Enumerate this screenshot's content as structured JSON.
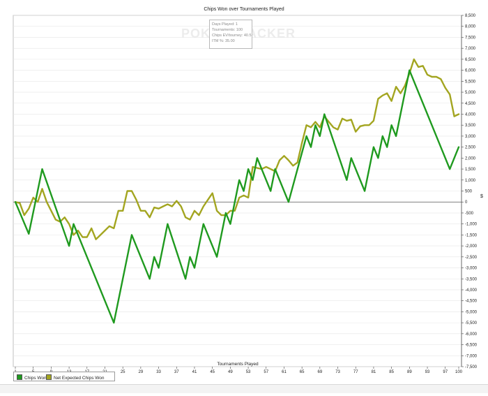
{
  "chart_data": {
    "type": "line",
    "title": "Chips Won over Tournaments Played",
    "xlabel": "Tournaments Played",
    "ylabel": "",
    "y_axis_symbol": "$",
    "xlim": [
      1,
      100
    ],
    "ylim": [
      -7500,
      8500
    ],
    "x_ticks": [
      1,
      5,
      9,
      13,
      17,
      21,
      25,
      29,
      33,
      37,
      41,
      45,
      49,
      53,
      57,
      61,
      65,
      69,
      73,
      77,
      81,
      85,
      89,
      93,
      97,
      100
    ],
    "y_ticks": [
      "8,500",
      "8,000",
      "7,500",
      "7,000",
      "6,500",
      "6,000",
      "5,500",
      "5,000",
      "4,500",
      "4,000",
      "3,500",
      "3,000",
      "2,500",
      "2,000",
      "1,500",
      "1,000",
      "500",
      "0",
      "-500",
      "-1,000",
      "-1,500",
      "-2,000",
      "-2,500",
      "-3,000",
      "-3,500",
      "-4,000",
      "-4,500",
      "-5,000",
      "-5,500",
      "-6,000",
      "-6,500",
      "-7,000",
      "-7,500"
    ],
    "y_tick_values": [
      8500,
      8000,
      7500,
      7000,
      6500,
      6000,
      5500,
      5000,
      4500,
      4000,
      3500,
      3000,
      2500,
      2000,
      1500,
      1000,
      500,
      0,
      -500,
      -1000,
      -1500,
      -2000,
      -2500,
      -3000,
      -3500,
      -4000,
      -4500,
      -5000,
      -5500,
      -6000,
      -6500,
      -7000,
      -7500
    ],
    "grid": "horizontal",
    "legend_position": "bottom-left",
    "series": [
      {
        "name": "Chips Won",
        "color": "#1f9a1f",
        "points": [
          [
            1,
            0
          ],
          [
            4,
            -1450
          ],
          [
            7,
            1500
          ],
          [
            13,
            -2000
          ],
          [
            14,
            -1000
          ],
          [
            23,
            -5500
          ],
          [
            27,
            -1500
          ],
          [
            31,
            -3500
          ],
          [
            32,
            -2500
          ],
          [
            33,
            -3000
          ],
          [
            35,
            -1000
          ],
          [
            39,
            -3500
          ],
          [
            40,
            -2500
          ],
          [
            41,
            -3000
          ],
          [
            43,
            -1000
          ],
          [
            46,
            -2500
          ],
          [
            48,
            -500
          ],
          [
            49,
            -1000
          ],
          [
            51,
            1000
          ],
          [
            52,
            500
          ],
          [
            53,
            1500
          ],
          [
            54,
            1000
          ],
          [
            55,
            2000
          ],
          [
            58,
            500
          ],
          [
            59,
            1500
          ],
          [
            62,
            0
          ],
          [
            66,
            3000
          ],
          [
            67,
            2500
          ],
          [
            68,
            3500
          ],
          [
            69,
            3000
          ],
          [
            70,
            4000
          ],
          [
            75,
            1000
          ],
          [
            76,
            2000
          ],
          [
            79,
            500
          ],
          [
            81,
            2500
          ],
          [
            82,
            2000
          ],
          [
            83,
            3000
          ],
          [
            84,
            2500
          ],
          [
            85,
            3500
          ],
          [
            86,
            3000
          ],
          [
            89,
            6000
          ],
          [
            98,
            1500
          ],
          [
            100,
            2500
          ]
        ]
      },
      {
        "name": "Net Expected Chips Won",
        "color": "#a3a520",
        "points": [
          [
            1,
            0
          ],
          [
            2,
            -50
          ],
          [
            3,
            -600
          ],
          [
            4,
            -300
          ],
          [
            5,
            200
          ],
          [
            6,
            0
          ],
          [
            7,
            600
          ],
          [
            8,
            0
          ],
          [
            9,
            -400
          ],
          [
            10,
            -800
          ],
          [
            11,
            -900
          ],
          [
            12,
            -700
          ],
          [
            13,
            -1000
          ],
          [
            14,
            -1500
          ],
          [
            15,
            -1300
          ],
          [
            16,
            -1600
          ],
          [
            17,
            -1600
          ],
          [
            18,
            -1200
          ],
          [
            19,
            -1700
          ],
          [
            20,
            -1500
          ],
          [
            21,
            -1300
          ],
          [
            22,
            -1100
          ],
          [
            23,
            -1200
          ],
          [
            24,
            -400
          ],
          [
            25,
            -400
          ],
          [
            26,
            500
          ],
          [
            27,
            500
          ],
          [
            28,
            100
          ],
          [
            29,
            -400
          ],
          [
            30,
            -400
          ],
          [
            31,
            -700
          ],
          [
            32,
            -250
          ],
          [
            33,
            -300
          ],
          [
            34,
            -200
          ],
          [
            35,
            -100
          ],
          [
            36,
            -200
          ],
          [
            37,
            50
          ],
          [
            38,
            -200
          ],
          [
            39,
            -700
          ],
          [
            40,
            -800
          ],
          [
            41,
            -400
          ],
          [
            42,
            -600
          ],
          [
            43,
            -200
          ],
          [
            44,
            100
          ],
          [
            45,
            400
          ],
          [
            46,
            -400
          ],
          [
            47,
            -600
          ],
          [
            48,
            -600
          ],
          [
            49,
            -400
          ],
          [
            50,
            -400
          ],
          [
            51,
            200
          ],
          [
            52,
            300
          ],
          [
            53,
            200
          ],
          [
            54,
            1600
          ],
          [
            55,
            1550
          ],
          [
            56,
            1500
          ],
          [
            57,
            1600
          ],
          [
            58,
            1500
          ],
          [
            59,
            1400
          ],
          [
            60,
            1900
          ],
          [
            61,
            2100
          ],
          [
            62,
            1900
          ],
          [
            63,
            1650
          ],
          [
            64,
            1800
          ],
          [
            65,
            2700
          ],
          [
            66,
            3500
          ],
          [
            67,
            3400
          ],
          [
            68,
            3650
          ],
          [
            69,
            3400
          ],
          [
            70,
            3900
          ],
          [
            71,
            3650
          ],
          [
            72,
            3400
          ],
          [
            73,
            3300
          ],
          [
            74,
            3800
          ],
          [
            75,
            3700
          ],
          [
            76,
            3750
          ],
          [
            77,
            3200
          ],
          [
            78,
            3450
          ],
          [
            79,
            3500
          ],
          [
            80,
            3500
          ],
          [
            81,
            3700
          ],
          [
            82,
            4700
          ],
          [
            83,
            4850
          ],
          [
            84,
            4950
          ],
          [
            85,
            4600
          ],
          [
            86,
            5250
          ],
          [
            87,
            4950
          ],
          [
            88,
            5300
          ],
          [
            89,
            5850
          ],
          [
            90,
            6500
          ],
          [
            91,
            6150
          ],
          [
            92,
            6200
          ],
          [
            93,
            5800
          ],
          [
            94,
            5700
          ],
          [
            95,
            5700
          ],
          [
            96,
            5600
          ],
          [
            97,
            5200
          ],
          [
            98,
            4900
          ],
          [
            99,
            3900
          ],
          [
            100,
            4000
          ]
        ]
      }
    ],
    "info_box": {
      "lines": [
        "Days Played: 1",
        "Tournaments: 100",
        "Chips EV/tourney: 40.5",
        "ITM %: 35.00"
      ]
    },
    "watermark": "POKERTRACKER"
  }
}
